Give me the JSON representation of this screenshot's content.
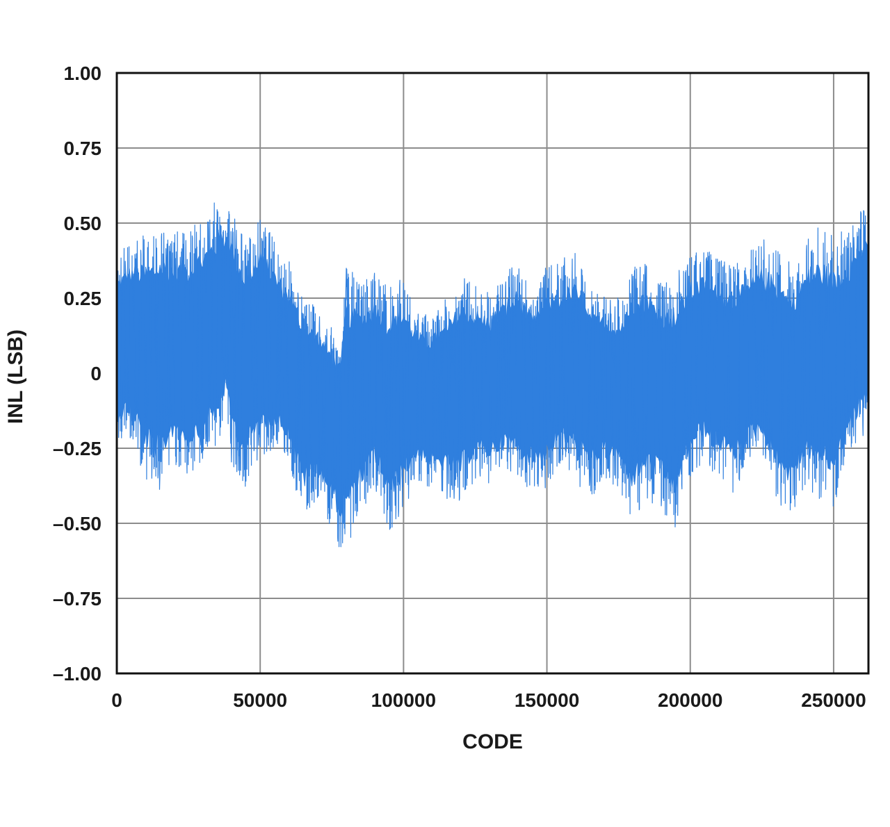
{
  "chart_data": {
    "type": "line",
    "title": "",
    "xlabel": "CODE",
    "ylabel": "INL (LSB)",
    "xlim": [
      0,
      262143
    ],
    "ylim": [
      -1.0,
      1.0
    ],
    "x_ticks": [
      0,
      50000,
      100000,
      150000,
      200000,
      250000
    ],
    "x_tick_labels": [
      "0",
      "50000",
      "100000",
      "150000",
      "200000",
      "250000"
    ],
    "y_ticks": [
      1.0,
      0.75,
      0.5,
      0.25,
      0,
      -0.25,
      -0.5,
      -0.75,
      -1.0
    ],
    "y_tick_labels": [
      "1.00",
      "0.75",
      "0.50",
      "0.25",
      "0",
      "–0.25",
      "–0.50",
      "–0.75",
      "–1.00"
    ],
    "grid": true,
    "legend": "none",
    "series": [
      {
        "color": "#2f7fde",
        "envelope": {
          "x": [
            0,
            5000,
            10000,
            15000,
            20000,
            25000,
            30000,
            35000,
            38000,
            40000,
            45000,
            50000,
            55000,
            60000,
            65000,
            70000,
            75000,
            78000,
            80000,
            85000,
            90000,
            95000,
            100000,
            105000,
            110000,
            115000,
            120000,
            125000,
            130000,
            135000,
            140000,
            145000,
            150000,
            155000,
            160000,
            165000,
            170000,
            175000,
            180000,
            185000,
            190000,
            195000,
            200000,
            205000,
            210000,
            215000,
            220000,
            225000,
            230000,
            235000,
            240000,
            245000,
            250000,
            255000,
            260000,
            262143
          ],
          "y_max": [
            0.4,
            0.45,
            0.46,
            0.5,
            0.47,
            0.48,
            0.52,
            0.58,
            0.6,
            0.56,
            0.44,
            0.52,
            0.45,
            0.38,
            0.25,
            0.22,
            0.15,
            0.1,
            0.37,
            0.3,
            0.35,
            0.29,
            0.32,
            0.2,
            0.2,
            0.25,
            0.33,
            0.3,
            0.27,
            0.33,
            0.38,
            0.27,
            0.36,
            0.38,
            0.4,
            0.28,
            0.27,
            0.25,
            0.35,
            0.38,
            0.3,
            0.33,
            0.4,
            0.42,
            0.38,
            0.37,
            0.4,
            0.45,
            0.43,
            0.37,
            0.45,
            0.5,
            0.46,
            0.48,
            0.56,
            0.52
          ],
          "y_min": [
            -0.25,
            -0.22,
            -0.36,
            -0.42,
            -0.3,
            -0.36,
            -0.3,
            -0.25,
            -0.15,
            -0.3,
            -0.38,
            -0.28,
            -0.25,
            -0.3,
            -0.5,
            -0.42,
            -0.52,
            -0.6,
            -0.58,
            -0.48,
            -0.38,
            -0.53,
            -0.45,
            -0.36,
            -0.4,
            -0.42,
            -0.44,
            -0.35,
            -0.37,
            -0.33,
            -0.35,
            -0.4,
            -0.38,
            -0.3,
            -0.36,
            -0.42,
            -0.36,
            -0.38,
            -0.5,
            -0.42,
            -0.46,
            -0.52,
            -0.35,
            -0.3,
            -0.35,
            -0.4,
            -0.32,
            -0.3,
            -0.42,
            -0.49,
            -0.38,
            -0.42,
            -0.46,
            -0.3,
            -0.22,
            -0.15
          ],
          "center": [
            0.09,
            0.1,
            0.07,
            0.06,
            0.08,
            0.08,
            0.1,
            0.14,
            0.18,
            0.12,
            0.04,
            0.08,
            0.06,
            0.02,
            -0.06,
            -0.08,
            -0.14,
            -0.18,
            -0.12,
            -0.08,
            -0.04,
            -0.1,
            -0.06,
            -0.06,
            -0.08,
            -0.07,
            -0.05,
            -0.04,
            -0.04,
            -0.02,
            -0.01,
            -0.05,
            -0.02,
            0.0,
            0.01,
            -0.04,
            -0.04,
            -0.06,
            -0.06,
            -0.02,
            -0.07,
            -0.08,
            0.02,
            0.05,
            0.02,
            -0.01,
            0.03,
            0.06,
            0.01,
            -0.04,
            0.02,
            0.03,
            0.0,
            0.06,
            0.14,
            0.16
          ]
        }
      }
    ]
  }
}
